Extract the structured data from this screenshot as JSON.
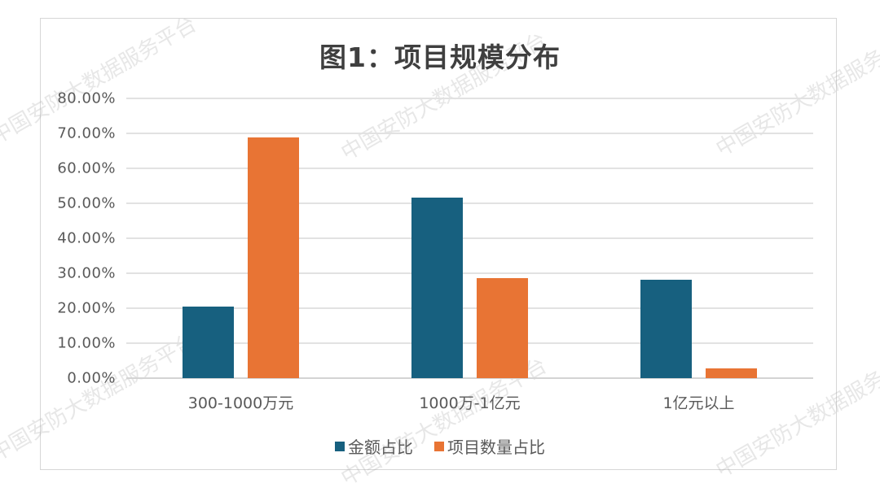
{
  "title": "图1：项目规模分布",
  "watermark": "中国安防大数据服务平台",
  "colors": {
    "series1": "#17607f",
    "series2": "#e87434",
    "grid": "#e2e2e2",
    "text": "#595959"
  },
  "yaxis": {
    "ticks": [
      "80.00%",
      "70.00%",
      "60.00%",
      "50.00%",
      "40.00%",
      "30.00%",
      "20.00%",
      "10.00%",
      "0.00%"
    ]
  },
  "xaxis": {
    "labels": [
      "300-1000万元",
      "1000万-1亿元",
      "1亿元以上"
    ]
  },
  "legend": [
    {
      "label": "金额占比"
    },
    {
      "label": "项目数量占比"
    }
  ],
  "chart_data": {
    "type": "bar",
    "title": "图1：项目规模分布",
    "xlabel": "",
    "ylabel": "",
    "categories": [
      "300-1000万元",
      "1000万-1亿元",
      "1亿元以上"
    ],
    "series": [
      {
        "name": "金额占比",
        "values": [
          20.4,
          51.6,
          28.2
        ],
        "color": "#17607f"
      },
      {
        "name": "项目数量占比",
        "values": [
          68.8,
          28.6,
          2.7
        ],
        "color": "#e87434"
      }
    ],
    "unit": "%",
    "ylim": [
      0,
      80
    ],
    "yticks": [
      0,
      10,
      20,
      30,
      40,
      50,
      60,
      70,
      80
    ],
    "grid": true,
    "legend_position": "bottom"
  }
}
